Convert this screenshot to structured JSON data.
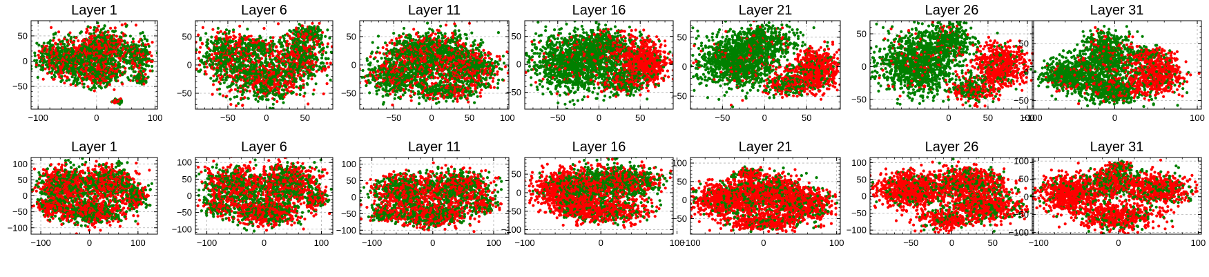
{
  "figure": {
    "rows": 2,
    "cols": 7
  },
  "colors": {
    "red": "#ff0000",
    "green": "#008000"
  },
  "chart_data": [
    {
      "type": "scatter",
      "title": "Layer 1",
      "row": 0,
      "col": 0,
      "xlim": [
        -112,
        104
      ],
      "ylim": [
        -95,
        80
      ],
      "xticks": [
        -100,
        0,
        100
      ],
      "yticks": [
        -50,
        0,
        50
      ],
      "green_fraction": 0.6,
      "clusters": [
        {
          "cx": -55,
          "cy": 5,
          "rx": 42,
          "ry": 32,
          "n": 700,
          "pr": 0.4
        },
        {
          "cx": 10,
          "cy": 25,
          "rx": 42,
          "ry": 35,
          "n": 700,
          "pr": 0.4
        },
        {
          "cx": 5,
          "cy": -25,
          "rx": 40,
          "ry": 22,
          "n": 450,
          "pr": 0.4
        },
        {
          "cx": 70,
          "cy": 8,
          "rx": 22,
          "ry": 28,
          "n": 250,
          "pr": 0.35
        },
        {
          "cx": 35,
          "cy": -80,
          "rx": 8,
          "ry": 6,
          "n": 40,
          "pr": 0.3
        },
        {
          "cx": 75,
          "cy": -35,
          "rx": 10,
          "ry": 12,
          "n": 60,
          "pr": 0.3
        }
      ]
    },
    {
      "type": "scatter",
      "title": "Layer 6",
      "row": 0,
      "col": 1,
      "xlim": [
        -92,
        86
      ],
      "ylim": [
        -78,
        78
      ],
      "xticks": [
        -50,
        0,
        50
      ],
      "yticks": [
        -50,
        0,
        50
      ],
      "clusters": [
        {
          "cx": -50,
          "cy": 15,
          "rx": 30,
          "ry": 40,
          "n": 600,
          "pr": 0.4
        },
        {
          "cx": 0,
          "cy": -25,
          "rx": 42,
          "ry": 32,
          "n": 700,
          "pr": 0.4
        },
        {
          "cx": 45,
          "cy": 20,
          "rx": 35,
          "ry": 40,
          "n": 600,
          "pr": 0.4
        },
        {
          "cx": -10,
          "cy": 30,
          "rx": 18,
          "ry": 14,
          "n": 150,
          "pr": 0.4
        },
        {
          "cx": 55,
          "cy": 55,
          "rx": 15,
          "ry": 12,
          "n": 120,
          "pr": 0.35
        }
      ]
    },
    {
      "type": "scatter",
      "title": "Layer 11",
      "row": 0,
      "col": 2,
      "xlim": [
        -95,
        102
      ],
      "ylim": [
        -78,
        78
      ],
      "xticks": [
        -50,
        0,
        50,
        100
      ],
      "yticks": [
        -50,
        0,
        50
      ],
      "clusters": [
        {
          "cx": -40,
          "cy": -20,
          "rx": 42,
          "ry": 30,
          "n": 700,
          "pr": 0.3
        },
        {
          "cx": 10,
          "cy": 20,
          "rx": 45,
          "ry": 35,
          "n": 800,
          "pr": 0.35
        },
        {
          "cx": 50,
          "cy": -10,
          "rx": 35,
          "ry": 35,
          "n": 600,
          "pr": 0.45
        },
        {
          "cx": -30,
          "cy": 25,
          "rx": 30,
          "ry": 20,
          "n": 300,
          "pr": 0.35
        },
        {
          "cx": 20,
          "cy": -45,
          "rx": 30,
          "ry": 15,
          "n": 250,
          "pr": 0.35
        }
      ]
    },
    {
      "type": "scatter",
      "title": "Layer 16",
      "row": 0,
      "col": 3,
      "xlim": [
        -90,
        90
      ],
      "ylim": [
        -80,
        78
      ],
      "xticks": [
        -50,
        0,
        50
      ],
      "yticks": [
        -50,
        0,
        50
      ],
      "clusters": [
        {
          "cx": -30,
          "cy": 5,
          "rx": 48,
          "ry": 45,
          "n": 1300,
          "pr": 0.1
        },
        {
          "cx": 10,
          "cy": 30,
          "rx": 35,
          "ry": 30,
          "n": 500,
          "pr": 0.2
        },
        {
          "cx": 55,
          "cy": 5,
          "rx": 25,
          "ry": 32,
          "n": 700,
          "pr": 0.85
        },
        {
          "cx": 30,
          "cy": -30,
          "rx": 25,
          "ry": 22,
          "n": 300,
          "pr": 0.4
        }
      ]
    },
    {
      "type": "scatter",
      "title": "Layer 21",
      "row": 0,
      "col": 4,
      "xlim": [
        -88,
        90
      ],
      "ylim": [
        -72,
        78
      ],
      "xticks": [
        -50,
        0,
        50
      ],
      "yticks": [
        -50,
        0,
        50
      ],
      "clusters": [
        {
          "cx": -30,
          "cy": 10,
          "rx": 45,
          "ry": 40,
          "n": 1200,
          "pr": 0.1
        },
        {
          "cx": 0,
          "cy": 45,
          "rx": 35,
          "ry": 22,
          "n": 400,
          "pr": 0.1
        },
        {
          "cx": 60,
          "cy": -5,
          "rx": 25,
          "ry": 30,
          "n": 700,
          "pr": 0.85
        },
        {
          "cx": 30,
          "cy": -30,
          "rx": 25,
          "ry": 20,
          "n": 300,
          "pr": 0.5
        }
      ]
    },
    {
      "type": "scatter",
      "title": "Layer 26",
      "row": 0,
      "col": 5,
      "xlim": [
        -100,
        108
      ],
      "ylim": [
        -65,
        70
      ],
      "xticks": [
        0,
        50,
        100
      ],
      "yticks": [
        -50,
        0,
        50
      ],
      "clusters": [
        {
          "cx": -40,
          "cy": 5,
          "rx": 45,
          "ry": 40,
          "n": 1200,
          "pr": 0.1
        },
        {
          "cx": 0,
          "cy": 40,
          "rx": 30,
          "ry": 25,
          "n": 400,
          "pr": 0.1
        },
        {
          "cx": 65,
          "cy": 0,
          "rx": 28,
          "ry": 30,
          "n": 700,
          "pr": 0.85
        },
        {
          "cx": 30,
          "cy": -35,
          "rx": 25,
          "ry": 18,
          "n": 300,
          "pr": 0.55
        }
      ]
    },
    {
      "type": "scatter",
      "title": "Layer 31",
      "row": 0,
      "col": 6,
      "xlim": [
        -100,
        105
      ],
      "ylim": [
        -65,
        90
      ],
      "xticks": [
        -100,
        0,
        100
      ],
      "yticks": [
        -50,
        0,
        50
      ],
      "clusters": [
        {
          "cx": -50,
          "cy": -5,
          "rx": 35,
          "ry": 25,
          "n": 700,
          "pr": 0.1
        },
        {
          "cx": -10,
          "cy": 30,
          "rx": 30,
          "ry": 35,
          "n": 700,
          "pr": 0.15
        },
        {
          "cx": 0,
          "cy": -30,
          "rx": 35,
          "ry": 22,
          "n": 600,
          "pr": 0.2
        },
        {
          "cx": 50,
          "cy": -5,
          "rx": 30,
          "ry": 30,
          "n": 600,
          "pr": 0.8
        },
        {
          "cx": 40,
          "cy": 30,
          "rx": 20,
          "ry": 12,
          "n": 150,
          "pr": 0.6
        }
      ]
    },
    {
      "type": "scatter",
      "title": "Layer 1",
      "row": 1,
      "col": 0,
      "xlim": [
        -120,
        140
      ],
      "ylim": [
        -120,
        120
      ],
      "xticks": [
        -100,
        0,
        100
      ],
      "yticks": [
        -100,
        -50,
        0,
        50,
        100
      ],
      "clusters": [
        {
          "cx": -50,
          "cy": 30,
          "rx": 50,
          "ry": 55,
          "n": 700,
          "pr": 0.55
        },
        {
          "cx": 40,
          "cy": 40,
          "rx": 50,
          "ry": 50,
          "n": 700,
          "pr": 0.55
        },
        {
          "cx": 0,
          "cy": -50,
          "rx": 60,
          "ry": 35,
          "n": 700,
          "pr": 0.55
        },
        {
          "cx": 95,
          "cy": -5,
          "rx": 20,
          "ry": 30,
          "n": 200,
          "pr": 0.55
        },
        {
          "cx": -80,
          "cy": -30,
          "rx": 25,
          "ry": 25,
          "n": 200,
          "pr": 0.55
        }
      ]
    },
    {
      "type": "scatter",
      "title": "Layer 6",
      "row": 1,
      "col": 1,
      "xlim": [
        -120,
        120
      ],
      "ylim": [
        -115,
        115
      ],
      "xticks": [
        -100,
        0,
        100
      ],
      "yticks": [
        -100,
        -50,
        0,
        50,
        100
      ],
      "clusters": [
        {
          "cx": -50,
          "cy": 30,
          "rx": 45,
          "ry": 50,
          "n": 700,
          "pr": 0.55
        },
        {
          "cx": 40,
          "cy": 40,
          "rx": 50,
          "ry": 50,
          "n": 700,
          "pr": 0.55
        },
        {
          "cx": 0,
          "cy": -45,
          "rx": 60,
          "ry": 40,
          "n": 700,
          "pr": 0.55
        },
        {
          "cx": 90,
          "cy": -10,
          "rx": 18,
          "ry": 25,
          "n": 150,
          "pr": 0.55
        },
        {
          "cx": -85,
          "cy": -30,
          "rx": 20,
          "ry": 25,
          "n": 150,
          "pr": 0.55
        }
      ]
    },
    {
      "type": "scatter",
      "title": "Layer 11",
      "row": 1,
      "col": 2,
      "xlim": [
        -120,
        125
      ],
      "ylim": [
        -112,
        120
      ],
      "xticks": [
        -100,
        0,
        100
      ],
      "yticks": [
        -100,
        -50,
        0,
        50,
        100
      ],
      "clusters": [
        {
          "cx": -50,
          "cy": 20,
          "rx": 45,
          "ry": 45,
          "n": 700,
          "pr": 0.55
        },
        {
          "cx": 40,
          "cy": 30,
          "rx": 50,
          "ry": 45,
          "n": 700,
          "pr": 0.55
        },
        {
          "cx": 0,
          "cy": -50,
          "rx": 60,
          "ry": 35,
          "n": 700,
          "pr": 0.55
        },
        {
          "cx": 85,
          "cy": -20,
          "rx": 20,
          "ry": 25,
          "n": 150,
          "pr": 0.55
        },
        {
          "cx": -80,
          "cy": -50,
          "rx": 20,
          "ry": 20,
          "n": 150,
          "pr": 0.55
        }
      ]
    },
    {
      "type": "scatter",
      "title": "Layer 16",
      "row": 1,
      "col": 3,
      "xlim": [
        -100,
        95
      ],
      "ylim": [
        -112,
        95
      ],
      "xticks": [
        -100,
        0,
        100
      ],
      "yticks": [
        -100,
        -50,
        0,
        50
      ],
      "clusters": [
        {
          "cx": -50,
          "cy": 10,
          "rx": 35,
          "ry": 45,
          "n": 800,
          "pr": 0.85
        },
        {
          "cx": 0,
          "cy": 20,
          "rx": 40,
          "ry": 45,
          "n": 700,
          "pr": 0.5
        },
        {
          "cx": 40,
          "cy": 30,
          "rx": 35,
          "ry": 35,
          "n": 500,
          "pr": 0.45
        },
        {
          "cx": 10,
          "cy": -50,
          "rx": 50,
          "ry": 30,
          "n": 600,
          "pr": 0.7
        },
        {
          "cx": -35,
          "cy": -40,
          "rx": 25,
          "ry": 25,
          "n": 250,
          "pr": 0.8
        }
      ]
    },
    {
      "type": "scatter",
      "title": "Layer 21",
      "row": 1,
      "col": 4,
      "xlim": [
        -100,
        105
      ],
      "ylim": [
        -92,
        115
      ],
      "xticks": [
        -100,
        0,
        100
      ],
      "yticks": [
        -50,
        0,
        50,
        100
      ],
      "clusters": [
        {
          "cx": -50,
          "cy": 0,
          "rx": 40,
          "ry": 45,
          "n": 900,
          "pr": 0.85
        },
        {
          "cx": 10,
          "cy": 20,
          "rx": 40,
          "ry": 45,
          "n": 800,
          "pr": 0.7
        },
        {
          "cx": 55,
          "cy": -10,
          "rx": 35,
          "ry": 40,
          "n": 700,
          "pr": 0.75
        },
        {
          "cx": 0,
          "cy": -60,
          "rx": 45,
          "ry": 20,
          "n": 400,
          "pr": 0.8
        },
        {
          "cx": -20,
          "cy": 70,
          "rx": 15,
          "ry": 12,
          "n": 120,
          "pr": 0.6
        }
      ]
    },
    {
      "type": "scatter",
      "title": "Layer 26",
      "row": 1,
      "col": 5,
      "xlim": [
        -100,
        100
      ],
      "ylim": [
        -112,
        115
      ],
      "xticks": [
        -50,
        0,
        50
      ],
      "yticks": [
        -100,
        -50,
        0,
        50,
        100
      ],
      "clusters": [
        {
          "cx": -50,
          "cy": 20,
          "rx": 40,
          "ry": 45,
          "n": 900,
          "pr": 0.85
        },
        {
          "cx": 20,
          "cy": 40,
          "rx": 40,
          "ry": 40,
          "n": 700,
          "pr": 0.7
        },
        {
          "cx": 40,
          "cy": -30,
          "rx": 40,
          "ry": 40,
          "n": 700,
          "pr": 0.7
        },
        {
          "cx": -10,
          "cy": -70,
          "rx": 30,
          "ry": 25,
          "n": 300,
          "pr": 0.8
        }
      ]
    },
    {
      "type": "scatter",
      "title": "Layer 31",
      "row": 1,
      "col": 6,
      "xlim": [
        -108,
        104
      ],
      "ylim": [
        -105,
        110
      ],
      "xticks": [
        -100,
        0,
        100
      ],
      "yticks": [
        -100,
        -50,
        0,
        50,
        100
      ],
      "clusters": [
        {
          "cx": -60,
          "cy": 10,
          "rx": 35,
          "ry": 45,
          "n": 800,
          "pr": 0.9
        },
        {
          "cx": -5,
          "cy": 40,
          "rx": 30,
          "ry": 35,
          "n": 500,
          "pr": 0.55
        },
        {
          "cx": 50,
          "cy": 20,
          "rx": 35,
          "ry": 40,
          "n": 600,
          "pr": 0.7
        },
        {
          "cx": 0,
          "cy": -55,
          "rx": 45,
          "ry": 35,
          "n": 600,
          "pr": 0.8
        },
        {
          "cx": 0,
          "cy": 85,
          "rx": 12,
          "ry": 12,
          "n": 100,
          "pr": 0.5
        }
      ]
    }
  ]
}
